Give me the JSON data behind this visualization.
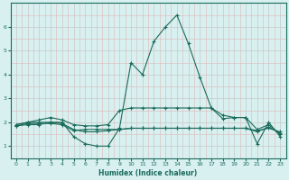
{
  "xlabel": "Humidex (Indice chaleur)",
  "x": [
    0,
    1,
    2,
    3,
    4,
    5,
    6,
    7,
    8,
    9,
    10,
    11,
    12,
    13,
    14,
    15,
    16,
    17,
    18,
    19,
    20,
    21,
    22,
    23
  ],
  "line1": [
    1.9,
    2.0,
    2.0,
    2.0,
    2.0,
    1.4,
    1.1,
    1.0,
    1.0,
    1.75,
    4.5,
    4.0,
    5.4,
    6.0,
    6.5,
    5.3,
    3.9,
    2.6,
    2.15,
    2.2,
    2.2,
    1.1,
    2.0,
    1.4
  ],
  "line2": [
    1.85,
    1.95,
    1.95,
    1.95,
    1.9,
    1.65,
    1.7,
    1.7,
    1.7,
    1.7,
    1.75,
    1.75,
    1.75,
    1.75,
    1.75,
    1.75,
    1.75,
    1.75,
    1.75,
    1.75,
    1.75,
    1.65,
    1.75,
    1.6
  ],
  "line3": [
    1.9,
    2.0,
    2.1,
    2.2,
    2.1,
    1.9,
    1.85,
    1.85,
    1.9,
    2.5,
    2.6,
    2.6,
    2.6,
    2.6,
    2.6,
    2.6,
    2.6,
    2.6,
    2.3,
    2.2,
    2.2,
    1.7,
    1.9,
    1.5
  ],
  "line4": [
    1.85,
    1.9,
    1.9,
    2.0,
    1.95,
    1.7,
    1.6,
    1.6,
    1.65,
    1.7,
    1.75,
    1.75,
    1.75,
    1.75,
    1.75,
    1.75,
    1.75,
    1.75,
    1.75,
    1.75,
    1.75,
    1.6,
    1.8,
    1.55
  ],
  "line_color": "#1a6b5a",
  "bg_color": "#d8f0f0",
  "grid_color_major": "#c8c8c8",
  "grid_color_minor": "#e0b8b8",
  "ylim": [
    0.5,
    7
  ],
  "xlim": [
    -0.5,
    23.5
  ],
  "yticks": [
    1,
    2,
    3,
    4,
    5,
    6
  ],
  "xticks": [
    0,
    1,
    2,
    3,
    4,
    5,
    6,
    7,
    8,
    9,
    10,
    11,
    12,
    13,
    14,
    15,
    16,
    17,
    18,
    19,
    20,
    21,
    22,
    23
  ]
}
